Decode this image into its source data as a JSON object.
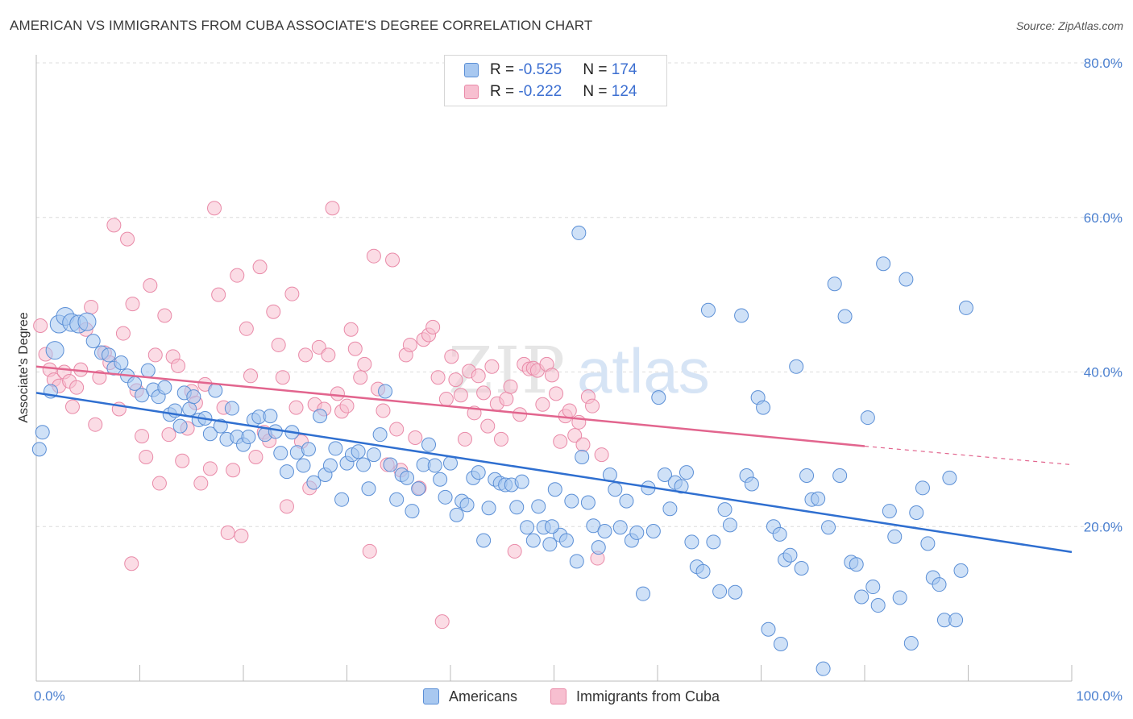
{
  "title": "AMERICAN VS IMMIGRANTS FROM CUBA ASSOCIATE'S DEGREE CORRELATION CHART",
  "source": "Source: ZipAtlas.com",
  "watermark": {
    "zip": "ZIP",
    "atlas": "atlas"
  },
  "colors": {
    "americans_fill": "#a8c8f0",
    "americans_stroke": "#5b8fd6",
    "americans_line": "#2f6fd0",
    "cuba_fill": "#f7bfd0",
    "cuba_stroke": "#e98aa8",
    "cuba_line": "#e2658e",
    "grid": "#dcdcdc",
    "tick_text": "#4a7fcf"
  },
  "legend": {
    "rows": [
      {
        "r_label": "R = ",
        "r_value": "-0.525",
        "n_label": "N = ",
        "n_value": "174"
      },
      {
        "r_label": "R = ",
        "r_value": "-0.222",
        "n_label": "N = ",
        "n_value": "124"
      }
    ]
  },
  "bottom_legend": {
    "americans": "Americans",
    "cuba": "Immigrants from Cuba"
  },
  "chart_data": {
    "type": "scatter",
    "title": "AMERICAN VS IMMIGRANTS FROM CUBA ASSOCIATE'S DEGREE CORRELATION CHART",
    "xlabel": "",
    "ylabel": "Associate's Degree",
    "xlim": [
      0,
      100
    ],
    "ylim": [
      0,
      80
    ],
    "x_ticks_labels": [
      "0.0%",
      "100.0%"
    ],
    "y_ticks": [
      20,
      40,
      60,
      80
    ],
    "y_ticks_labels": [
      "20.0%",
      "40.0%",
      "60.0%",
      "80.0%"
    ],
    "grid": "horizontal dashed",
    "legend_position": "top-center",
    "series": [
      {
        "name": "Americans",
        "r": -0.525,
        "n": 174,
        "trend": {
          "x": [
            0,
            100
          ],
          "y": [
            37.3,
            16.7
          ]
        },
        "points": [
          [
            0.3,
            30.0
          ],
          [
            0.6,
            32.2
          ],
          [
            1.4,
            37.5
          ],
          [
            1.8,
            42.8
          ],
          [
            2.2,
            46.2
          ],
          [
            2.8,
            47.2
          ],
          [
            3.4,
            46.4
          ],
          [
            4.1,
            46.2
          ],
          [
            4.9,
            46.5
          ],
          [
            5.5,
            44.0
          ],
          [
            6.3,
            42.5
          ],
          [
            7.0,
            42.2
          ],
          [
            7.5,
            40.5
          ],
          [
            8.2,
            41.2
          ],
          [
            8.8,
            39.5
          ],
          [
            9.5,
            38.5
          ],
          [
            10.2,
            37.0
          ],
          [
            10.8,
            40.2
          ],
          [
            11.3,
            37.7
          ],
          [
            11.8,
            36.8
          ],
          [
            12.4,
            38.0
          ],
          [
            12.9,
            34.5
          ],
          [
            13.4,
            35.0
          ],
          [
            13.9,
            33.0
          ],
          [
            14.3,
            37.3
          ],
          [
            14.8,
            35.2
          ],
          [
            15.2,
            36.8
          ],
          [
            15.7,
            33.8
          ],
          [
            16.3,
            34.0
          ],
          [
            16.8,
            32.0
          ],
          [
            17.3,
            37.6
          ],
          [
            17.8,
            33.0
          ],
          [
            18.4,
            31.3
          ],
          [
            18.9,
            35.3
          ],
          [
            19.4,
            31.6
          ],
          [
            20.0,
            30.6
          ],
          [
            20.5,
            31.6
          ],
          [
            21.0,
            33.8
          ],
          [
            21.5,
            34.2
          ],
          [
            22.1,
            31.9
          ],
          [
            22.6,
            34.3
          ],
          [
            23.1,
            32.3
          ],
          [
            23.6,
            29.5
          ],
          [
            24.2,
            27.1
          ],
          [
            24.7,
            32.2
          ],
          [
            25.2,
            29.6
          ],
          [
            25.8,
            27.9
          ],
          [
            26.3,
            30.0
          ],
          [
            26.8,
            25.7
          ],
          [
            27.4,
            34.3
          ],
          [
            27.9,
            26.7
          ],
          [
            28.4,
            27.9
          ],
          [
            28.9,
            30.1
          ],
          [
            29.5,
            23.5
          ],
          [
            30.0,
            28.2
          ],
          [
            30.5,
            29.3
          ],
          [
            31.1,
            29.7
          ],
          [
            31.6,
            28.0
          ],
          [
            32.1,
            24.9
          ],
          [
            32.6,
            29.3
          ],
          [
            33.2,
            31.9
          ],
          [
            33.7,
            37.5
          ],
          [
            34.2,
            28.0
          ],
          [
            34.8,
            23.5
          ],
          [
            35.3,
            26.7
          ],
          [
            35.8,
            26.3
          ],
          [
            36.3,
            22.0
          ],
          [
            36.9,
            24.9
          ],
          [
            37.4,
            28.0
          ],
          [
            37.9,
            30.6
          ],
          [
            38.5,
            27.9
          ],
          [
            39.0,
            26.1
          ],
          [
            39.5,
            23.8
          ],
          [
            40.0,
            28.2
          ],
          [
            40.6,
            21.5
          ],
          [
            41.1,
            23.3
          ],
          [
            41.6,
            22.8
          ],
          [
            42.2,
            26.3
          ],
          [
            42.7,
            27.0
          ],
          [
            43.2,
            18.2
          ],
          [
            43.7,
            22.4
          ],
          [
            44.3,
            26.1
          ],
          [
            44.8,
            25.6
          ],
          [
            45.3,
            25.4
          ],
          [
            45.9,
            25.4
          ],
          [
            46.4,
            22.5
          ],
          [
            46.9,
            25.8
          ],
          [
            47.4,
            19.9
          ],
          [
            48.0,
            18.2
          ],
          [
            48.5,
            22.6
          ],
          [
            49.0,
            19.9
          ],
          [
            49.6,
            17.7
          ],
          [
            50.1,
            24.8
          ],
          [
            50.6,
            18.9
          ],
          [
            51.2,
            18.2
          ],
          [
            51.7,
            23.3
          ],
          [
            52.2,
            15.5
          ],
          [
            52.7,
            29.0
          ],
          [
            53.3,
            23.1
          ],
          [
            53.8,
            20.1
          ],
          [
            54.3,
            17.3
          ],
          [
            54.9,
            19.4
          ],
          [
            55.4,
            26.7
          ],
          [
            55.9,
            24.8
          ],
          [
            56.4,
            19.9
          ],
          [
            57.0,
            23.3
          ],
          [
            57.5,
            18.2
          ],
          [
            58.0,
            19.2
          ],
          [
            58.6,
            11.3
          ],
          [
            59.1,
            25.0
          ],
          [
            59.6,
            19.4
          ],
          [
            60.1,
            36.7
          ],
          [
            60.7,
            26.7
          ],
          [
            61.2,
            22.3
          ],
          [
            61.7,
            25.7
          ],
          [
            62.3,
            25.2
          ],
          [
            62.8,
            27.0
          ],
          [
            63.3,
            18.0
          ],
          [
            63.8,
            14.8
          ],
          [
            64.4,
            14.2
          ],
          [
            64.9,
            48.0
          ],
          [
            65.4,
            18.0
          ],
          [
            66.0,
            11.6
          ],
          [
            66.5,
            22.2
          ],
          [
            67.0,
            20.2
          ],
          [
            67.5,
            11.5
          ],
          [
            68.1,
            47.3
          ],
          [
            68.6,
            26.6
          ],
          [
            69.1,
            25.5
          ],
          [
            69.7,
            36.7
          ],
          [
            70.2,
            35.4
          ],
          [
            70.7,
            6.7
          ],
          [
            71.2,
            20.0
          ],
          [
            71.8,
            19.0
          ],
          [
            72.3,
            15.7
          ],
          [
            72.8,
            16.3
          ],
          [
            73.4,
            40.7
          ],
          [
            73.9,
            14.6
          ],
          [
            74.4,
            26.6
          ],
          [
            74.9,
            23.5
          ],
          [
            75.5,
            23.6
          ],
          [
            76.0,
            1.6
          ],
          [
            76.5,
            19.9
          ],
          [
            77.1,
            51.4
          ],
          [
            77.6,
            26.6
          ],
          [
            78.1,
            47.2
          ],
          [
            78.7,
            15.4
          ],
          [
            79.2,
            15.1
          ],
          [
            79.7,
            10.9
          ],
          [
            80.3,
            34.1
          ],
          [
            80.8,
            12.2
          ],
          [
            81.3,
            9.8
          ],
          [
            81.8,
            54.0
          ],
          [
            82.4,
            22.0
          ],
          [
            82.9,
            18.7
          ],
          [
            83.4,
            10.8
          ],
          [
            84.0,
            52.0
          ],
          [
            84.5,
            4.9
          ],
          [
            85.0,
            21.8
          ],
          [
            85.6,
            25.0
          ],
          [
            86.1,
            17.8
          ],
          [
            86.6,
            13.4
          ],
          [
            87.2,
            12.5
          ],
          [
            87.7,
            7.9
          ],
          [
            88.2,
            26.3
          ],
          [
            88.8,
            7.9
          ],
          [
            89.3,
            14.3
          ],
          [
            89.8,
            48.3
          ],
          [
            71.9,
            4.8
          ],
          [
            52.4,
            58.0
          ],
          [
            49.8,
            20.0
          ]
        ]
      },
      {
        "name": "Immigrants from Cuba",
        "r": -0.222,
        "n": 124,
        "trend": {
          "x": [
            0,
            80
          ],
          "y": [
            40.7,
            30.4
          ]
        },
        "trend_dashed_extension": {
          "x": [
            80,
            100
          ],
          "y": [
            30.4,
            28.0
          ]
        },
        "points": [
          [
            0.4,
            46.0
          ],
          [
            0.9,
            42.3
          ],
          [
            1.3,
            40.3
          ],
          [
            1.7,
            39.0
          ],
          [
            2.2,
            38.2
          ],
          [
            2.7,
            40.0
          ],
          [
            3.2,
            38.8
          ],
          [
            3.5,
            35.5
          ],
          [
            3.9,
            38.0
          ],
          [
            4.3,
            40.3
          ],
          [
            4.8,
            45.5
          ],
          [
            5.3,
            48.4
          ],
          [
            5.7,
            33.2
          ],
          [
            6.1,
            39.3
          ],
          [
            6.6,
            42.5
          ],
          [
            7.1,
            41.2
          ],
          [
            7.5,
            59.0
          ],
          [
            8.0,
            35.2
          ],
          [
            8.4,
            45.0
          ],
          [
            8.8,
            57.2
          ],
          [
            9.3,
            48.8
          ],
          [
            9.7,
            37.6
          ],
          [
            10.2,
            31.7
          ],
          [
            10.6,
            29.0
          ],
          [
            11.0,
            51.2
          ],
          [
            11.5,
            42.2
          ],
          [
            11.9,
            25.6
          ],
          [
            12.4,
            47.3
          ],
          [
            12.8,
            31.9
          ],
          [
            13.2,
            42.0
          ],
          [
            13.7,
            40.8
          ],
          [
            14.1,
            28.5
          ],
          [
            14.6,
            32.7
          ],
          [
            15.0,
            37.5
          ],
          [
            15.4,
            36.0
          ],
          [
            15.9,
            25.6
          ],
          [
            16.3,
            38.4
          ],
          [
            16.8,
            27.5
          ],
          [
            17.2,
            61.2
          ],
          [
            17.6,
            50.0
          ],
          [
            18.1,
            35.4
          ],
          [
            18.5,
            19.2
          ],
          [
            19.0,
            27.3
          ],
          [
            19.4,
            52.5
          ],
          [
            19.8,
            18.8
          ],
          [
            20.3,
            45.6
          ],
          [
            20.7,
            39.5
          ],
          [
            21.2,
            29.0
          ],
          [
            21.6,
            53.6
          ],
          [
            22.0,
            32.2
          ],
          [
            22.5,
            31.1
          ],
          [
            22.9,
            47.8
          ],
          [
            23.4,
            43.5
          ],
          [
            23.8,
            39.3
          ],
          [
            24.2,
            22.6
          ],
          [
            24.7,
            50.1
          ],
          [
            25.1,
            35.4
          ],
          [
            25.6,
            31.0
          ],
          [
            26.0,
            42.2
          ],
          [
            26.4,
            25.0
          ],
          [
            26.9,
            35.8
          ],
          [
            27.3,
            43.2
          ],
          [
            27.8,
            35.2
          ],
          [
            28.2,
            42.2
          ],
          [
            28.6,
            61.2
          ],
          [
            29.1,
            37.2
          ],
          [
            29.5,
            34.9
          ],
          [
            30.0,
            35.6
          ],
          [
            30.4,
            45.5
          ],
          [
            30.8,
            43.0
          ],
          [
            31.3,
            39.3
          ],
          [
            31.7,
            41.0
          ],
          [
            32.2,
            16.8
          ],
          [
            32.6,
            55.0
          ],
          [
            33.0,
            37.8
          ],
          [
            33.5,
            35.0
          ],
          [
            33.9,
            28.0
          ],
          [
            34.4,
            54.5
          ],
          [
            34.8,
            32.6
          ],
          [
            35.2,
            27.3
          ],
          [
            35.7,
            42.2
          ],
          [
            36.1,
            43.5
          ],
          [
            36.6,
            31.5
          ],
          [
            37.0,
            25.0
          ],
          [
            37.4,
            44.2
          ],
          [
            37.9,
            44.8
          ],
          [
            38.3,
            45.8
          ],
          [
            38.8,
            39.3
          ],
          [
            39.2,
            7.7
          ],
          [
            39.6,
            36.5
          ],
          [
            40.1,
            42.0
          ],
          [
            40.5,
            39.0
          ],
          [
            41.0,
            37.0
          ],
          [
            41.4,
            31.3
          ],
          [
            41.8,
            40.1
          ],
          [
            42.3,
            34.7
          ],
          [
            42.7,
            39.5
          ],
          [
            43.2,
            37.3
          ],
          [
            43.6,
            33.0
          ],
          [
            44.0,
            40.7
          ],
          [
            44.5,
            35.9
          ],
          [
            44.9,
            31.3
          ],
          [
            45.4,
            36.5
          ],
          [
            45.8,
            38.1
          ],
          [
            46.2,
            16.8
          ],
          [
            46.7,
            34.5
          ],
          [
            47.1,
            41.0
          ],
          [
            47.6,
            40.4
          ],
          [
            48.0,
            40.5
          ],
          [
            48.4,
            40.2
          ],
          [
            48.9,
            35.8
          ],
          [
            49.3,
            41.0
          ],
          [
            49.8,
            39.6
          ],
          [
            50.2,
            37.2
          ],
          [
            50.6,
            31.0
          ],
          [
            51.1,
            34.3
          ],
          [
            51.5,
            35.0
          ],
          [
            52.0,
            31.8
          ],
          [
            52.4,
            33.5
          ],
          [
            52.8,
            30.6
          ],
          [
            53.3,
            36.8
          ],
          [
            53.7,
            35.6
          ],
          [
            54.2,
            15.9
          ],
          [
            54.6,
            29.3
          ],
          [
            9.2,
            15.2
          ]
        ]
      }
    ]
  }
}
